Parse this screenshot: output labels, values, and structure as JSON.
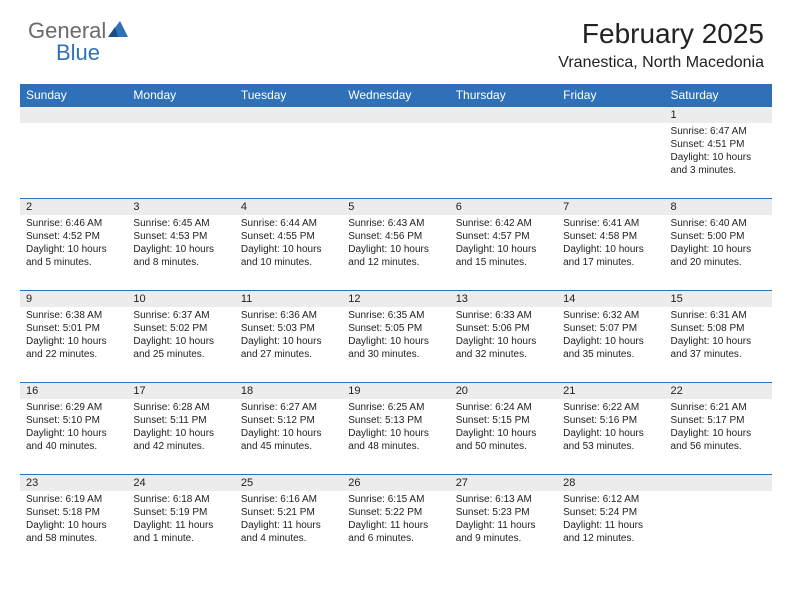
{
  "brand": {
    "word1": "General",
    "word2": "Blue"
  },
  "title": "February 2025",
  "location": "Vranestica, North Macedonia",
  "colors": {
    "header_bg": "#2f71b8",
    "header_text": "#ffffff",
    "daynum_bg": "#ececec",
    "border": "#2f71b8",
    "text": "#222222",
    "logo_gray": "#6a6a6a",
    "logo_blue": "#2f71b8"
  },
  "day_headers": [
    "Sunday",
    "Monday",
    "Tuesday",
    "Wednesday",
    "Thursday",
    "Friday",
    "Saturday"
  ],
  "weeks": [
    [
      null,
      null,
      null,
      null,
      null,
      null,
      {
        "n": "1",
        "sunrise": "6:47 AM",
        "sunset": "4:51 PM",
        "daylight": "10 hours and 3 minutes."
      }
    ],
    [
      {
        "n": "2",
        "sunrise": "6:46 AM",
        "sunset": "4:52 PM",
        "daylight": "10 hours and 5 minutes."
      },
      {
        "n": "3",
        "sunrise": "6:45 AM",
        "sunset": "4:53 PM",
        "daylight": "10 hours and 8 minutes."
      },
      {
        "n": "4",
        "sunrise": "6:44 AM",
        "sunset": "4:55 PM",
        "daylight": "10 hours and 10 minutes."
      },
      {
        "n": "5",
        "sunrise": "6:43 AM",
        "sunset": "4:56 PM",
        "daylight": "10 hours and 12 minutes."
      },
      {
        "n": "6",
        "sunrise": "6:42 AM",
        "sunset": "4:57 PM",
        "daylight": "10 hours and 15 minutes."
      },
      {
        "n": "7",
        "sunrise": "6:41 AM",
        "sunset": "4:58 PM",
        "daylight": "10 hours and 17 minutes."
      },
      {
        "n": "8",
        "sunrise": "6:40 AM",
        "sunset": "5:00 PM",
        "daylight": "10 hours and 20 minutes."
      }
    ],
    [
      {
        "n": "9",
        "sunrise": "6:38 AM",
        "sunset": "5:01 PM",
        "daylight": "10 hours and 22 minutes."
      },
      {
        "n": "10",
        "sunrise": "6:37 AM",
        "sunset": "5:02 PM",
        "daylight": "10 hours and 25 minutes."
      },
      {
        "n": "11",
        "sunrise": "6:36 AM",
        "sunset": "5:03 PM",
        "daylight": "10 hours and 27 minutes."
      },
      {
        "n": "12",
        "sunrise": "6:35 AM",
        "sunset": "5:05 PM",
        "daylight": "10 hours and 30 minutes."
      },
      {
        "n": "13",
        "sunrise": "6:33 AM",
        "sunset": "5:06 PM",
        "daylight": "10 hours and 32 minutes."
      },
      {
        "n": "14",
        "sunrise": "6:32 AM",
        "sunset": "5:07 PM",
        "daylight": "10 hours and 35 minutes."
      },
      {
        "n": "15",
        "sunrise": "6:31 AM",
        "sunset": "5:08 PM",
        "daylight": "10 hours and 37 minutes."
      }
    ],
    [
      {
        "n": "16",
        "sunrise": "6:29 AM",
        "sunset": "5:10 PM",
        "daylight": "10 hours and 40 minutes."
      },
      {
        "n": "17",
        "sunrise": "6:28 AM",
        "sunset": "5:11 PM",
        "daylight": "10 hours and 42 minutes."
      },
      {
        "n": "18",
        "sunrise": "6:27 AM",
        "sunset": "5:12 PM",
        "daylight": "10 hours and 45 minutes."
      },
      {
        "n": "19",
        "sunrise": "6:25 AM",
        "sunset": "5:13 PM",
        "daylight": "10 hours and 48 minutes."
      },
      {
        "n": "20",
        "sunrise": "6:24 AM",
        "sunset": "5:15 PM",
        "daylight": "10 hours and 50 minutes."
      },
      {
        "n": "21",
        "sunrise": "6:22 AM",
        "sunset": "5:16 PM",
        "daylight": "10 hours and 53 minutes."
      },
      {
        "n": "22",
        "sunrise": "6:21 AM",
        "sunset": "5:17 PM",
        "daylight": "10 hours and 56 minutes."
      }
    ],
    [
      {
        "n": "23",
        "sunrise": "6:19 AM",
        "sunset": "5:18 PM",
        "daylight": "10 hours and 58 minutes."
      },
      {
        "n": "24",
        "sunrise": "6:18 AM",
        "sunset": "5:19 PM",
        "daylight": "11 hours and 1 minute."
      },
      {
        "n": "25",
        "sunrise": "6:16 AM",
        "sunset": "5:21 PM",
        "daylight": "11 hours and 4 minutes."
      },
      {
        "n": "26",
        "sunrise": "6:15 AM",
        "sunset": "5:22 PM",
        "daylight": "11 hours and 6 minutes."
      },
      {
        "n": "27",
        "sunrise": "6:13 AM",
        "sunset": "5:23 PM",
        "daylight": "11 hours and 9 minutes."
      },
      {
        "n": "28",
        "sunrise": "6:12 AM",
        "sunset": "5:24 PM",
        "daylight": "11 hours and 12 minutes."
      },
      null
    ]
  ],
  "labels": {
    "sunrise": "Sunrise:",
    "sunset": "Sunset:",
    "daylight": "Daylight:"
  }
}
